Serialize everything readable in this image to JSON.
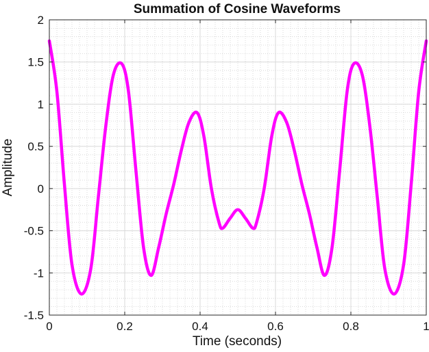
{
  "chart_data": {
    "type": "line",
    "title": "Summation of Cosine Waveforms",
    "xlabel": "Time (seconds)",
    "ylabel": "Amplitude",
    "xlim": [
      0,
      1
    ],
    "ylim": [
      -1.5,
      2
    ],
    "x_ticks": [
      0,
      0.2,
      0.4,
      0.6,
      0.8,
      1
    ],
    "x_tick_labels": [
      "0",
      "0.2",
      "0.4",
      "0.6",
      "0.8",
      "1"
    ],
    "y_ticks": [
      -1.5,
      -1,
      -0.5,
      0,
      0.5,
      1,
      1.5,
      2
    ],
    "y_tick_labels": [
      "-1.5",
      "-1",
      "-0.5",
      "0",
      "0.5",
      "1",
      "1.5",
      "2"
    ],
    "grid": true,
    "minor_grid": true,
    "series": [
      {
        "color": "#ff00ff",
        "x": [
          0,
          0.02,
          0.04,
          0.06,
          0.085,
          0.11,
          0.13,
          0.15,
          0.17,
          0.192,
          0.21,
          0.23,
          0.25,
          0.27,
          0.29,
          0.31,
          0.33,
          0.35,
          0.37,
          0.392,
          0.41,
          0.43,
          0.45,
          0.46,
          0.48,
          0.5,
          0.52,
          0.54,
          0.55,
          0.57,
          0.59,
          0.608,
          0.63,
          0.65,
          0.67,
          0.69,
          0.71,
          0.73,
          0.75,
          0.77,
          0.79,
          0.808,
          0.83,
          0.85,
          0.87,
          0.89,
          0.915,
          0.94,
          0.96,
          0.98,
          1
        ],
        "y": [
          1.75,
          1.15,
          0.05,
          -0.9,
          -1.25,
          -0.95,
          -0.1,
          0.75,
          1.35,
          1.48,
          1.15,
          0.2,
          -0.7,
          -1.03,
          -0.7,
          -0.3,
          0.05,
          0.45,
          0.78,
          0.9,
          0.62,
          0.0,
          -0.4,
          -0.47,
          -0.35,
          -0.25,
          -0.35,
          -0.47,
          -0.4,
          0.0,
          0.62,
          0.9,
          0.78,
          0.45,
          0.05,
          -0.3,
          -0.7,
          -1.03,
          -0.7,
          0.2,
          1.15,
          1.48,
          1.35,
          0.75,
          -0.1,
          -0.95,
          -1.25,
          -0.9,
          0.05,
          1.15,
          1.75
        ]
      }
    ]
  }
}
